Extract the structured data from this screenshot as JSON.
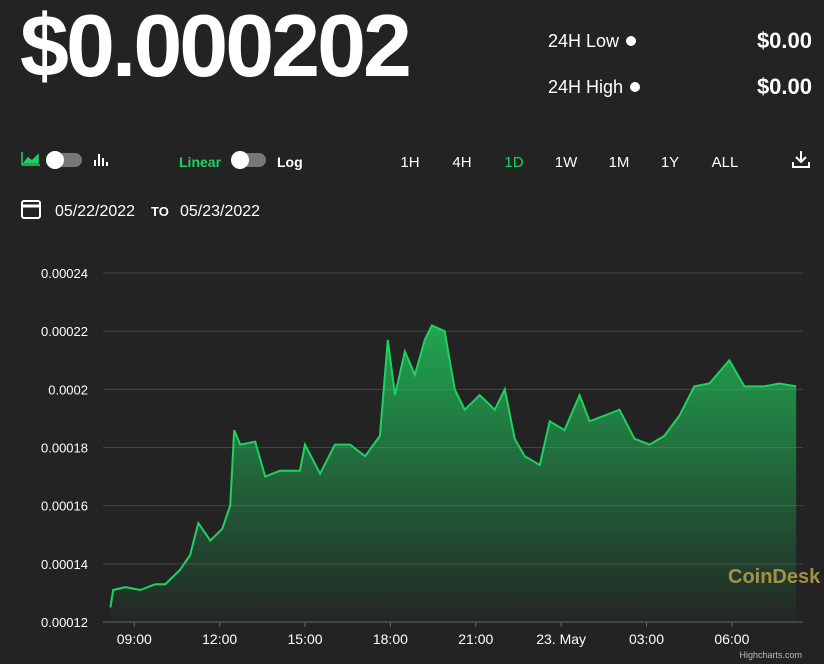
{
  "header": {
    "price": "$0.000202",
    "low_label": "24H Low",
    "low_value": "$0.00",
    "high_label": "24H High",
    "high_value": "$0.00"
  },
  "controls": {
    "linear": "Linear",
    "log": "Log",
    "ranges": [
      "1H",
      "4H",
      "1D",
      "1W",
      "1M",
      "1Y",
      "ALL"
    ],
    "active_range": "1D",
    "date_from": "05/22/2022",
    "date_to_label": "TO",
    "date_to": "05/23/2022"
  },
  "chart_data": {
    "type": "area",
    "color": "#1fd15f",
    "grid": true,
    "x": [
      8.16,
      8.26,
      8.68,
      9.21,
      9.74,
      10.09,
      10.61,
      10.96,
      11.25,
      11.67,
      12.09,
      12.37,
      12.51,
      12.72,
      13.25,
      13.6,
      14.12,
      14.82,
      15.0,
      15.53,
      16.05,
      16.58,
      17.11,
      17.63,
      17.91,
      18.16,
      18.51,
      18.86,
      19.21,
      19.46,
      19.91,
      20.26,
      20.61,
      21.14,
      21.67,
      22.02,
      22.37,
      22.72,
      23.25,
      23.6,
      24.12,
      24.65,
      25.0,
      25.53,
      26.05,
      26.58,
      27.11,
      27.63,
      28.16,
      28.68,
      29.21,
      29.91,
      30.44,
      31.14,
      31.67,
      32.26
    ],
    "values": [
      0.000125,
      0.000131,
      0.000132,
      0.000131,
      0.000133,
      0.000133,
      0.000138,
      0.000143,
      0.000154,
      0.000148,
      0.000152,
      0.00016,
      0.000186,
      0.000181,
      0.000182,
      0.00017,
      0.000172,
      0.000172,
      0.000181,
      0.000171,
      0.000181,
      0.000181,
      0.000177,
      0.000184,
      0.000217,
      0.000198,
      0.000213,
      0.000205,
      0.000217,
      0.000222,
      0.00022,
      0.0002,
      0.000193,
      0.000198,
      0.000193,
      0.0002,
      0.000183,
      0.000177,
      0.000174,
      0.000189,
      0.000186,
      0.000198,
      0.000189,
      0.000191,
      0.000193,
      0.000183,
      0.000181,
      0.000184,
      0.000191,
      0.000201,
      0.000202,
      0.00021,
      0.000201,
      0.000201,
      0.000202,
      0.000201
    ],
    "xlim": [
      7.9,
      32.5
    ],
    "ylim": [
      0.00012,
      0.00024
    ],
    "xticks": [
      {
        "value": 9,
        "label": "09:00"
      },
      {
        "value": 12,
        "label": "12:00"
      },
      {
        "value": 15,
        "label": "15:00"
      },
      {
        "value": 18,
        "label": "18:00"
      },
      {
        "value": 21,
        "label": "21:00"
      },
      {
        "value": 24,
        "label": "23. May"
      },
      {
        "value": 27,
        "label": "03:00"
      },
      {
        "value": 30,
        "label": "06:00"
      }
    ],
    "yticks": [
      0.00012,
      0.00014,
      0.00016,
      0.00018,
      0.0002,
      0.00022,
      0.00024
    ],
    "watermark": "CoinDesk",
    "credits": "Highcharts.com"
  }
}
